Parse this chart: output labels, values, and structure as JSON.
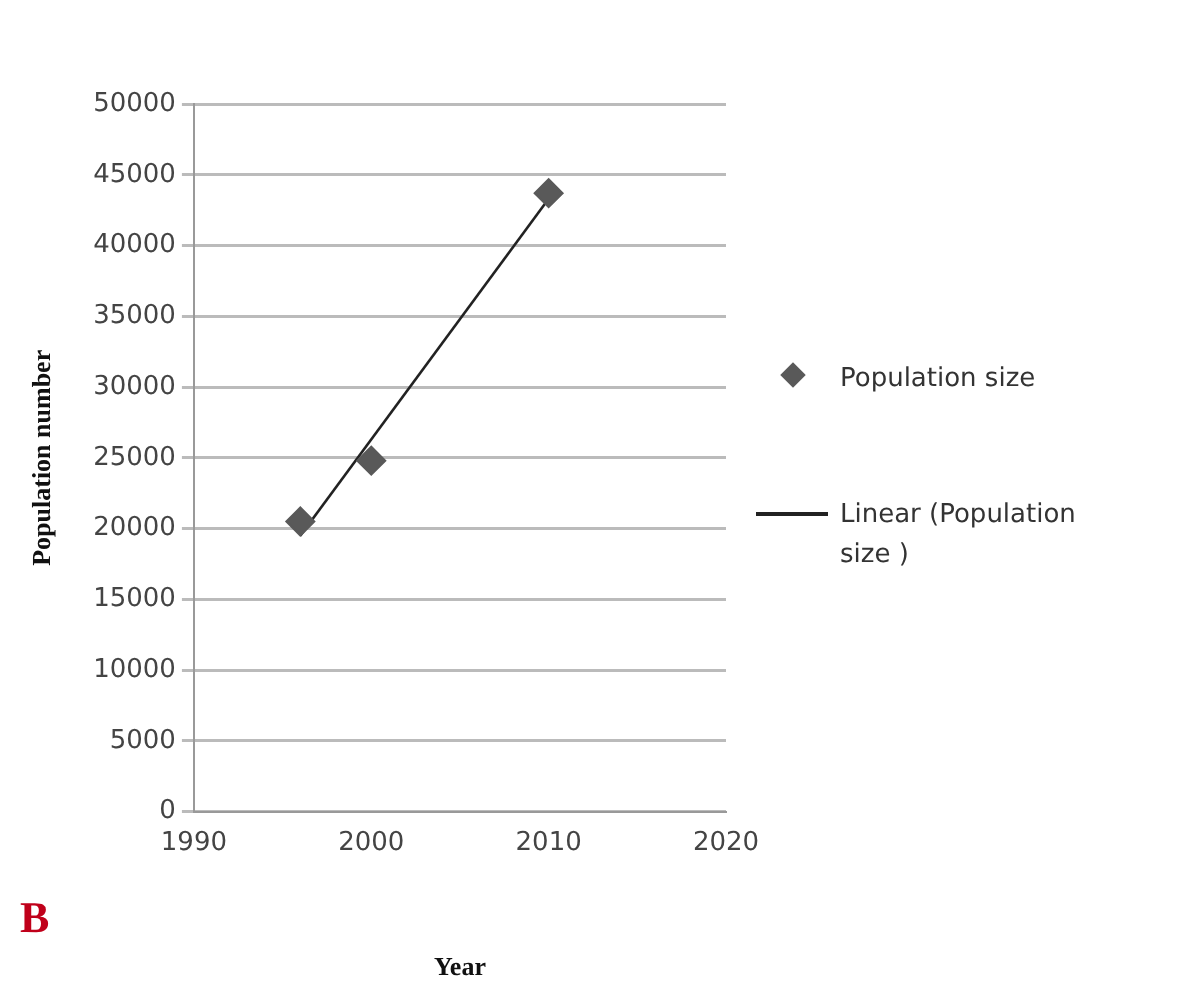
{
  "chart_data": {
    "type": "scatter",
    "xlabel": "Year",
    "ylabel": "Population number",
    "series": [
      {
        "name": "Population size",
        "color": "#595959",
        "marker": "diamond",
        "x": [
          1996,
          2000,
          2010
        ],
        "values": [
          20500,
          24800,
          43700
        ]
      },
      {
        "name": "Linear (Population size )",
        "type": "line",
        "color": "#222222",
        "marker": "none",
        "line_style": "solid",
        "x": [
          1996,
          2010
        ],
        "values": [
          19500,
          43300
        ]
      }
    ],
    "xlim": [
      1990,
      2020
    ],
    "xticks": [
      1990,
      2000,
      2010,
      2020
    ],
    "ylim": [
      0,
      50000
    ],
    "yticks": [
      0,
      5000,
      10000,
      15000,
      20000,
      25000,
      30000,
      35000,
      40000,
      45000,
      50000
    ],
    "grid": "y",
    "legend": "right",
    "annotations": [
      "B"
    ]
  }
}
